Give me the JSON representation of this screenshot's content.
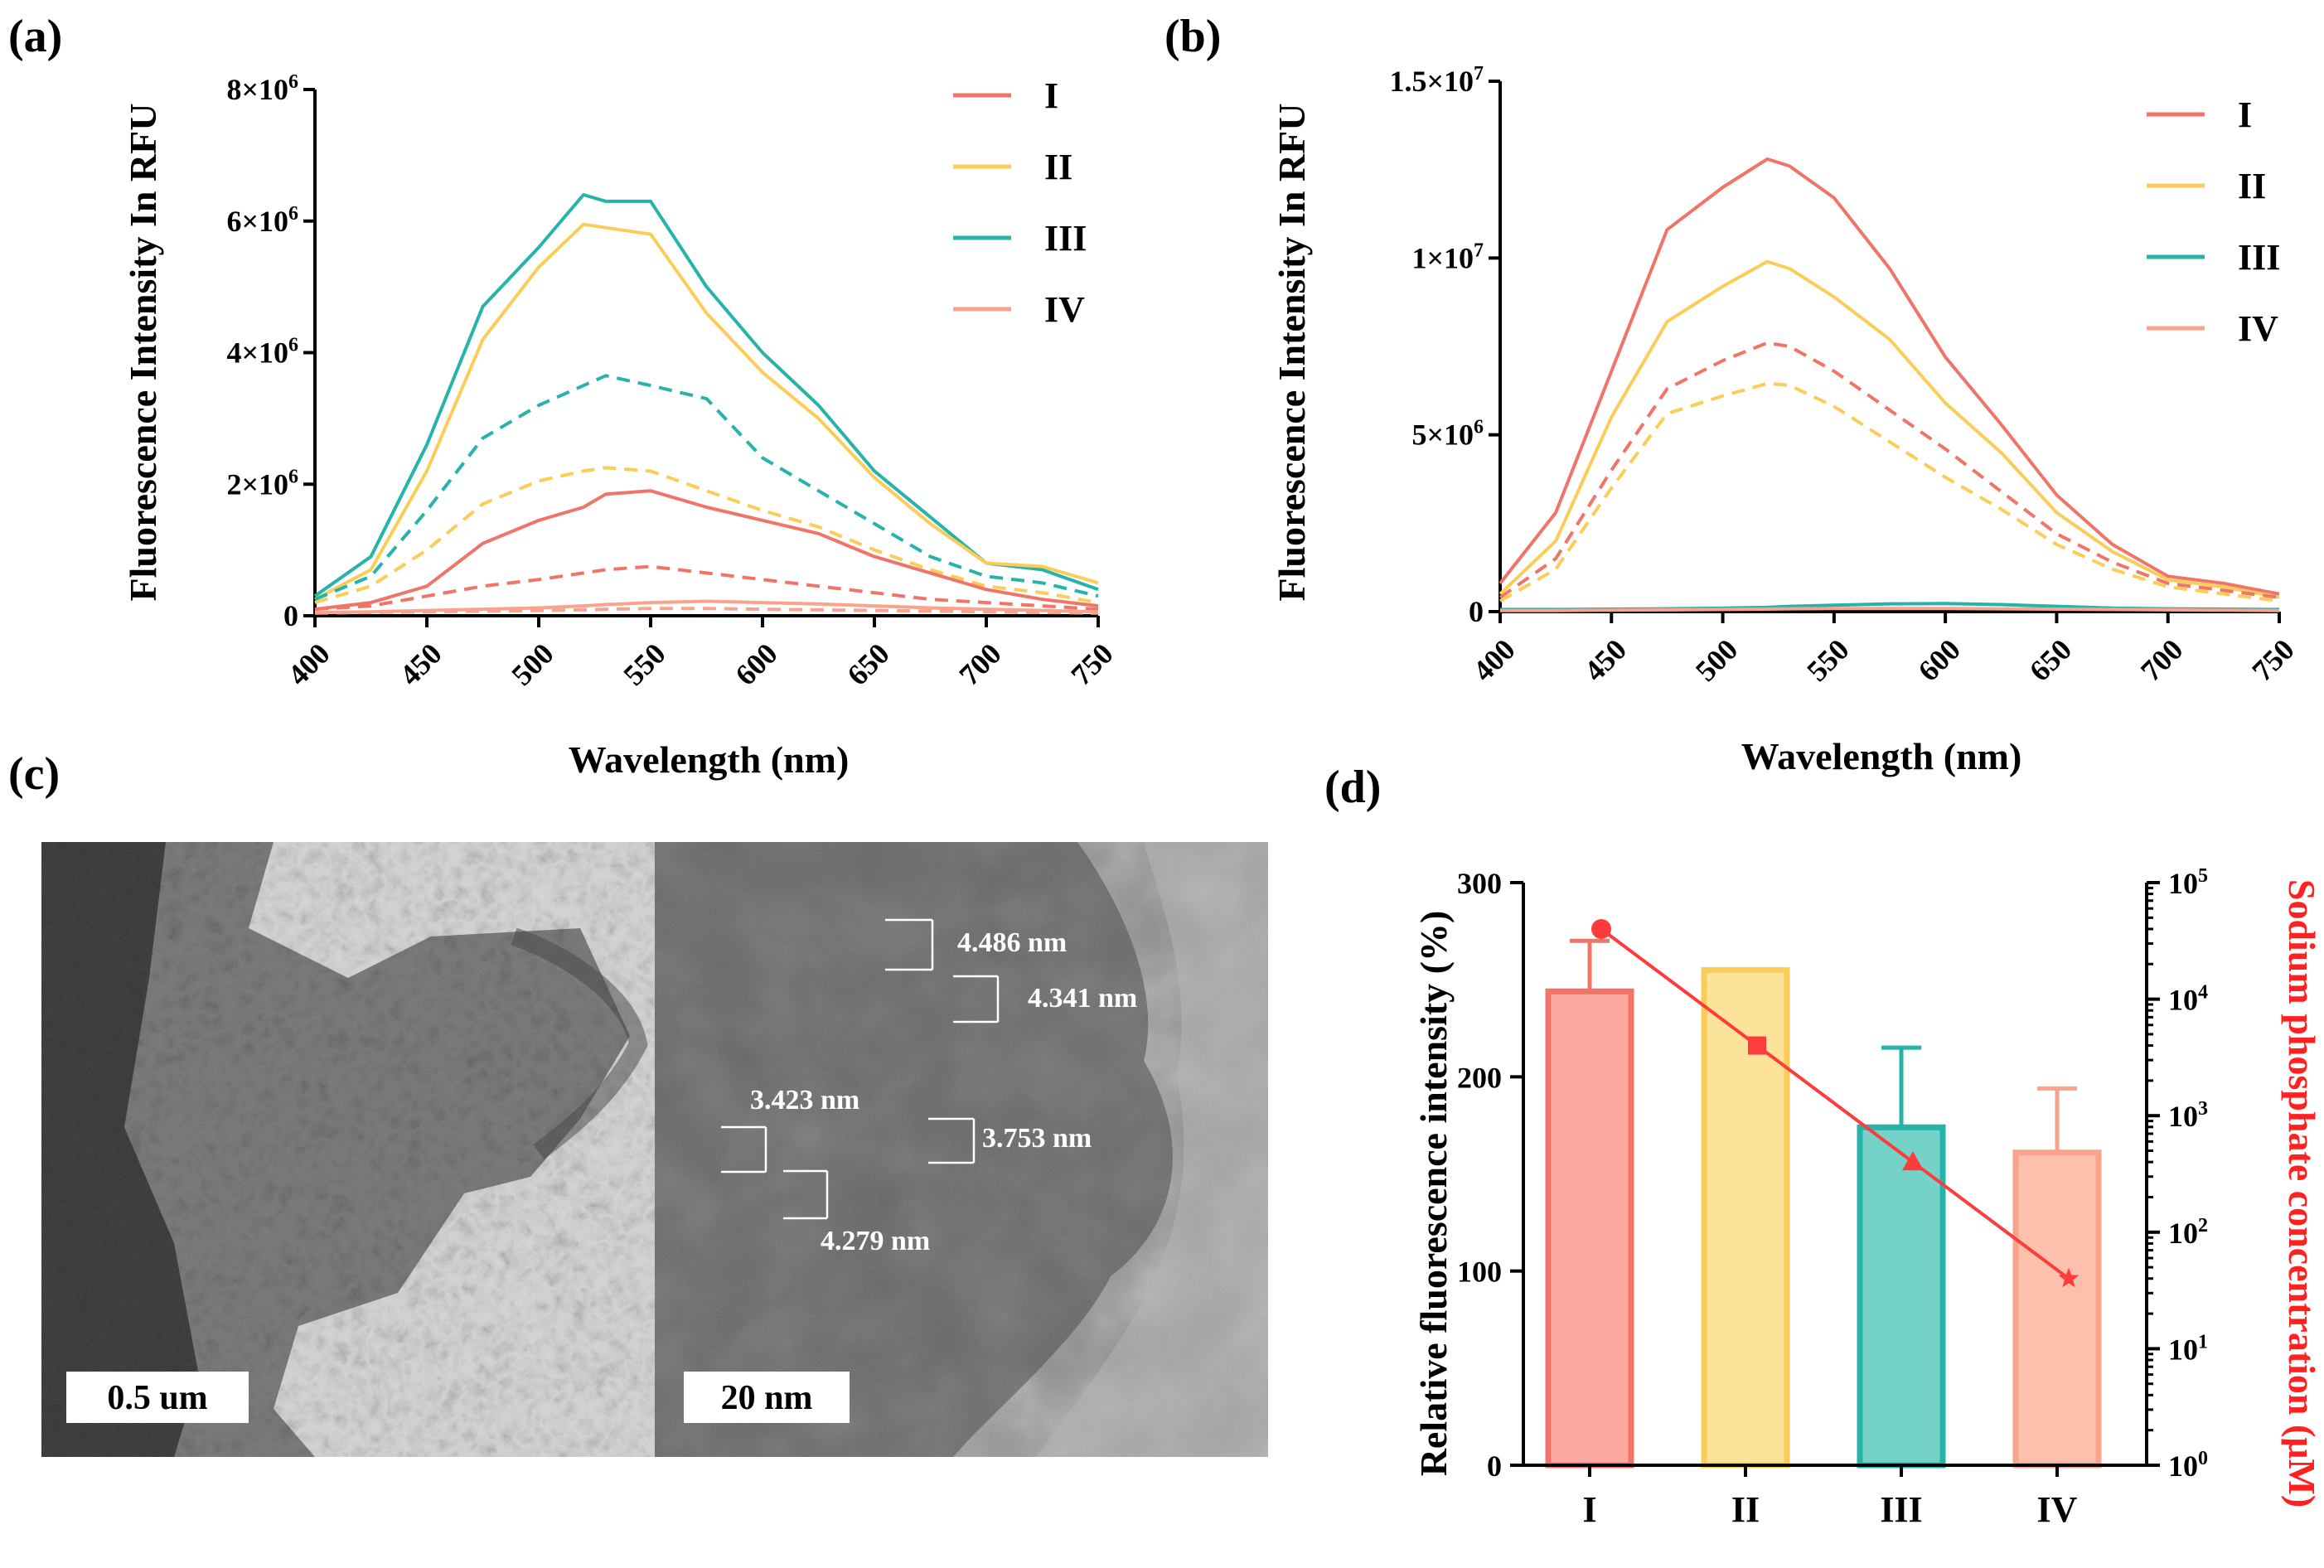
{
  "panels": {
    "a": "(a)",
    "b": "(b)",
    "c": "(c)",
    "d": "(d)"
  },
  "colors": {
    "I": "#f07467",
    "II": "#fbcd58",
    "III": "#25b3aa",
    "IV": "#f9a28c",
    "d_line": "#ff3b3b",
    "d_axis_label": "#ff2020"
  },
  "chart_data": [
    {
      "id": "a",
      "type": "line",
      "xlabel": "Wavelength (nm)",
      "ylabel": "Fluorescence Intensity In RFU",
      "xlim": [
        400,
        750
      ],
      "ylim": [
        0,
        8000000
      ],
      "xticks": [
        400,
        450,
        500,
        550,
        600,
        650,
        700,
        750
      ],
      "yticks": [
        {
          "v": 0,
          "label": "0"
        },
        {
          "v": 2000000,
          "label": "2×10^6"
        },
        {
          "v": 4000000,
          "label": "4×10^6"
        },
        {
          "v": 6000000,
          "label": "6×10^6"
        },
        {
          "v": 8000000,
          "label": "8×10^6"
        }
      ],
      "legend": [
        "I",
        "II",
        "III",
        "IV"
      ],
      "x": [
        400,
        425,
        450,
        475,
        500,
        520,
        530,
        550,
        575,
        600,
        625,
        650,
        675,
        700,
        725,
        750
      ],
      "series": [
        {
          "name": "III",
          "style": "solid",
          "values": [
            300000,
            900000,
            2600000,
            4700000,
            5600000,
            6400000,
            6300000,
            6300000,
            5000000,
            4000000,
            3200000,
            2200000,
            1500000,
            800000,
            700000,
            400000
          ]
        },
        {
          "name": "II",
          "style": "solid",
          "values": [
            250000,
            700000,
            2200000,
            4200000,
            5300000,
            5950000,
            5900000,
            5800000,
            4600000,
            3700000,
            3000000,
            2100000,
            1400000,
            800000,
            750000,
            500000
          ]
        },
        {
          "name": "III",
          "style": "dashed",
          "values": [
            250000,
            600000,
            1600000,
            2700000,
            3200000,
            3500000,
            3650000,
            3500000,
            3300000,
            2400000,
            1900000,
            1400000,
            900000,
            600000,
            500000,
            300000
          ]
        },
        {
          "name": "II",
          "style": "dashed",
          "values": [
            200000,
            450000,
            1000000,
            1700000,
            2050000,
            2200000,
            2250000,
            2200000,
            1900000,
            1600000,
            1350000,
            1000000,
            700000,
            450000,
            350000,
            200000
          ]
        },
        {
          "name": "I",
          "style": "solid",
          "values": [
            100000,
            200000,
            450000,
            1100000,
            1450000,
            1650000,
            1850000,
            1900000,
            1650000,
            1450000,
            1250000,
            900000,
            650000,
            400000,
            250000,
            150000
          ]
        },
        {
          "name": "I",
          "style": "dashed",
          "values": [
            100000,
            150000,
            300000,
            450000,
            550000,
            650000,
            700000,
            750000,
            650000,
            550000,
            450000,
            350000,
            250000,
            200000,
            150000,
            100000
          ]
        },
        {
          "name": "IV",
          "style": "solid",
          "values": [
            50000,
            60000,
            80000,
            100000,
            120000,
            150000,
            170000,
            200000,
            220000,
            200000,
            180000,
            150000,
            120000,
            100000,
            80000,
            60000
          ]
        },
        {
          "name": "IV",
          "style": "dashed",
          "values": [
            40000,
            50000,
            60000,
            70000,
            80000,
            90000,
            100000,
            110000,
            110000,
            100000,
            90000,
            80000,
            70000,
            60000,
            50000,
            40000
          ]
        }
      ]
    },
    {
      "id": "b",
      "type": "line",
      "xlabel": "Wavelength (nm)",
      "ylabel": "Fluorescence Intensity In RFU",
      "xlim": [
        400,
        750
      ],
      "ylim": [
        0,
        15000000
      ],
      "xticks": [
        400,
        450,
        500,
        550,
        600,
        650,
        700,
        750
      ],
      "yticks": [
        {
          "v": 0,
          "label": "0"
        },
        {
          "v": 5000000,
          "label": "5×10^6"
        },
        {
          "v": 10000000,
          "label": "1×10^7"
        },
        {
          "v": 15000000,
          "label": "1.5×10^7"
        }
      ],
      "legend": [
        "I",
        "II",
        "III",
        "IV"
      ],
      "x": [
        400,
        425,
        450,
        475,
        500,
        520,
        530,
        550,
        575,
        600,
        625,
        650,
        675,
        700,
        725,
        750
      ],
      "series": [
        {
          "name": "I",
          "style": "solid",
          "values": [
            800000,
            2800000,
            6800000,
            10800000,
            12000000,
            12800000,
            12600000,
            11700000,
            9700000,
            7200000,
            5300000,
            3300000,
            1900000,
            1000000,
            800000,
            500000
          ]
        },
        {
          "name": "II",
          "style": "solid",
          "values": [
            500000,
            2000000,
            5500000,
            8200000,
            9200000,
            9900000,
            9700000,
            8900000,
            7700000,
            5900000,
            4500000,
            2800000,
            1700000,
            900000,
            700000,
            400000
          ]
        },
        {
          "name": "I",
          "style": "dashed",
          "values": [
            400000,
            1500000,
            4000000,
            6300000,
            7100000,
            7600000,
            7500000,
            6800000,
            5700000,
            4600000,
            3400000,
            2200000,
            1400000,
            800000,
            600000,
            400000
          ]
        },
        {
          "name": "II",
          "style": "dashed",
          "values": [
            300000,
            1200000,
            3500000,
            5600000,
            6100000,
            6450000,
            6400000,
            5800000,
            4800000,
            3800000,
            2900000,
            1900000,
            1200000,
            700000,
            500000,
            300000
          ]
        },
        {
          "name": "III",
          "style": "solid",
          "values": [
            60000,
            60000,
            70000,
            80000,
            100000,
            120000,
            150000,
            180000,
            220000,
            230000,
            200000,
            150000,
            100000,
            80000,
            70000,
            60000
          ]
        },
        {
          "name": "IV",
          "style": "solid",
          "values": [
            30000,
            30000,
            40000,
            50000,
            60000,
            70000,
            80000,
            90000,
            90000,
            90000,
            80000,
            70000,
            60000,
            50000,
            40000,
            30000
          ]
        }
      ]
    },
    {
      "id": "d",
      "type": "bar",
      "categories": [
        "I",
        "II",
        "III",
        "IV"
      ],
      "ylabel": "Relative fluorescence intensity (%)",
      "y2label": "Sodium phosphate concentration (μM)",
      "ylim": [
        0,
        300
      ],
      "yticks": [
        0,
        100,
        200,
        300
      ],
      "y2scale": "log",
      "y2lim": [
        1,
        100000
      ],
      "y2ticks": [
        {
          "v": 1,
          "base": "10",
          "exp": "0"
        },
        {
          "v": 10,
          "base": "10",
          "exp": "1"
        },
        {
          "v": 100,
          "base": "10",
          "exp": "2"
        },
        {
          "v": 1000,
          "base": "10",
          "exp": "3"
        },
        {
          "v": 10000,
          "base": "10",
          "exp": "4"
        },
        {
          "v": 100000,
          "base": "10",
          "exp": "5"
        }
      ],
      "values": [
        244,
        255,
        174,
        161
      ],
      "errors": [
        26,
        0,
        41,
        33
      ],
      "concentration": [
        40000,
        4000,
        400,
        40
      ],
      "markers": [
        "circle",
        "square",
        "triangle",
        "star"
      ]
    }
  ],
  "tem": {
    "left_scale": "0.5 um",
    "right_scale": "20 nm",
    "measurements": [
      "4.486 nm",
      "4.341 nm",
      "3.423 nm",
      "3.753 nm",
      "4.279 nm"
    ]
  }
}
